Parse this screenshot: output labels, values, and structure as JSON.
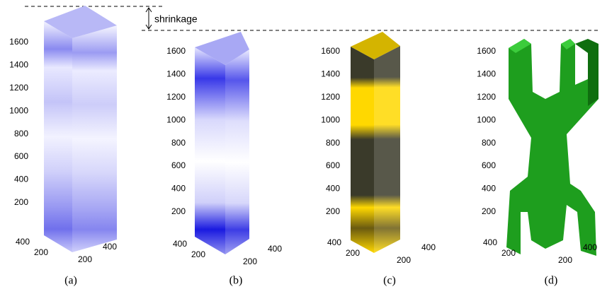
{
  "annotation": "shrinkage",
  "panels": [
    {
      "caption": "(a)",
      "z_ticks": [
        200,
        400,
        600,
        800,
        1000,
        1200,
        1400,
        1600
      ],
      "base_ticks": [
        400,
        200,
        200,
        400
      ]
    },
    {
      "caption": "(b)",
      "z_ticks": [
        200,
        400,
        600,
        800,
        1000,
        1200,
        1400,
        1600
      ],
      "base_ticks": [
        400,
        200,
        200,
        400
      ]
    },
    {
      "caption": "(c)",
      "z_ticks": [
        200,
        400,
        600,
        800,
        1000,
        1200,
        1400,
        1600
      ],
      "base_ticks": [
        400,
        200,
        200,
        400
      ]
    },
    {
      "caption": "(d)",
      "z_ticks": [
        200,
        400,
        600,
        800,
        1000,
        1200,
        1400,
        1600
      ],
      "base_ticks": [
        400,
        200,
        200,
        400
      ]
    }
  ]
}
